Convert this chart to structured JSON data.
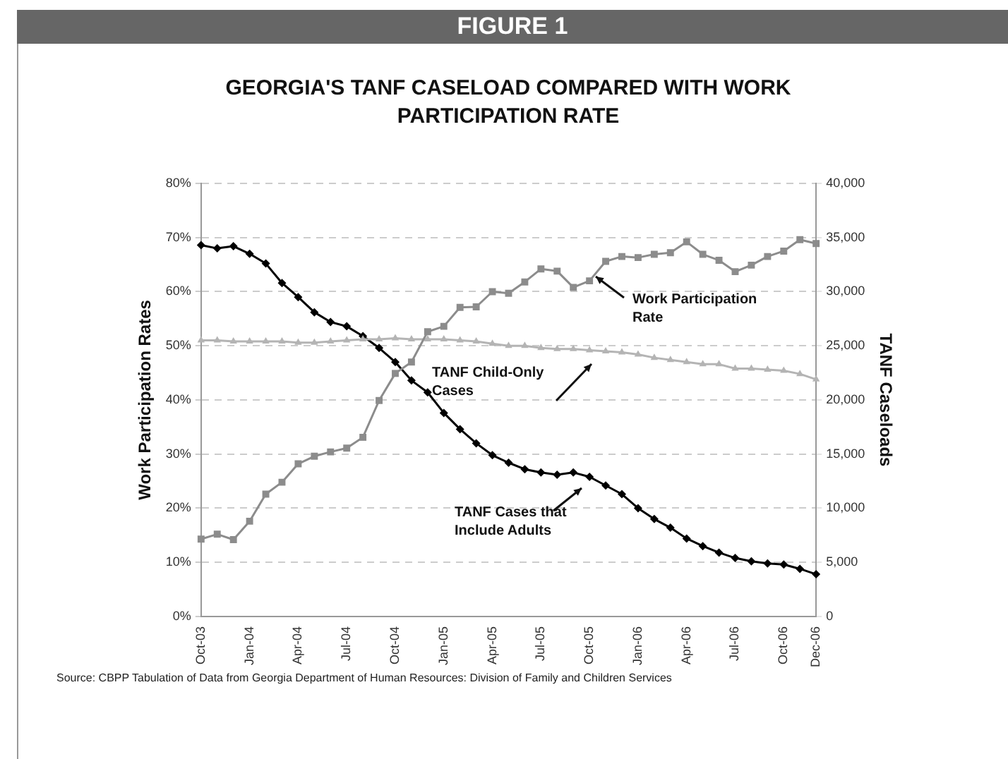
{
  "chart_data": {
    "type": "line",
    "title": "GEORGIA'S TANF CASELOAD COMPARED WITH WORK PARTICIPATION RATE",
    "ylabel": "Work Participation Rates",
    "y2label": "TANF Caseloads",
    "annotations": [
      "FIGURE 1",
      "Source: CBPP Tabulation of Data from Georgia Department of Human Resources: Division of Family and Children Services"
    ],
    "categories": [
      "Oct-03",
      null,
      null,
      "Jan-04",
      null,
      null,
      "Apr-04",
      null,
      null,
      "Jul-04",
      null,
      null,
      "Oct-04",
      null,
      null,
      "Jan-05",
      null,
      null,
      "Apr-05",
      null,
      null,
      "Jul-05",
      null,
      null,
      "Oct-05",
      null,
      null,
      "Jan-06",
      null,
      null,
      "Apr-06",
      null,
      null,
      "Jul-06",
      null,
      null,
      "Oct-06",
      null,
      "Dec-06"
    ],
    "series": [
      {
        "name": "Work Participation Rate",
        "color": "#8c8c8c",
        "marker": "square",
        "values": [
          14.3,
          15.2,
          14.2,
          17.6,
          22.6,
          24.8,
          28.2,
          29.6,
          30.4,
          31.1,
          33.1,
          39.9,
          44.9,
          47.0,
          52.6,
          53.6,
          57.1,
          57.2,
          60.0,
          59.7,
          61.8,
          64.2,
          63.8,
          60.8,
          62.0,
          65.6,
          66.5,
          66.3,
          66.9,
          67.2,
          69.2,
          66.9,
          65.8,
          63.7,
          64.9,
          66.5,
          67.5,
          69.6,
          68.9
        ]
      },
      {
        "name": "TANF Child-Only Cases",
        "color": "#b4b4b4",
        "marker": "triangle",
        "axis": "y2",
        "values": [
          25500,
          25500,
          25400,
          25400,
          25400,
          25400,
          25300,
          25300,
          25400,
          25500,
          25600,
          25600,
          25700,
          25600,
          25600,
          25600,
          25500,
          25400,
          25200,
          25000,
          25000,
          24800,
          24700,
          24700,
          24600,
          24500,
          24400,
          24200,
          23900,
          23700,
          23500,
          23300,
          23300,
          22900,
          22900,
          22800,
          22700,
          22400,
          21900
        ]
      },
      {
        "name": "TANF Cases that Include Adults",
        "color": "#000000",
        "marker": "diamond",
        "axis": "y2",
        "values": [
          34300,
          34000,
          34200,
          33500,
          32600,
          30800,
          29500,
          28100,
          27200,
          26800,
          25900,
          24800,
          23500,
          21800,
          20700,
          18800,
          17300,
          16000,
          14900,
          14200,
          13600,
          13300,
          13100,
          13300,
          12900,
          12100,
          11300,
          10000,
          9000,
          8200,
          7200,
          6500,
          5900,
          5400,
          5100,
          4900,
          4800,
          4400,
          3900
        ]
      }
    ],
    "ylim": [
      0,
      80
    ],
    "yticks": [
      {
        "value": 0,
        "label": "0%"
      },
      {
        "value": 10,
        "label": "10%"
      },
      {
        "value": 20,
        "label": "20%"
      },
      {
        "value": 30,
        "label": "30%"
      },
      {
        "value": 40,
        "label": "40%"
      },
      {
        "value": 50,
        "label": "50%"
      },
      {
        "value": 60,
        "label": "60%"
      },
      {
        "value": 70,
        "label": "70%"
      },
      {
        "value": 80,
        "label": "80%"
      }
    ],
    "y2lim": [
      0,
      40000
    ],
    "y2ticks": [
      0,
      {
        "value": 5000,
        "label": "5,000"
      },
      {
        "value": 10000,
        "label": "10,000"
      },
      {
        "value": 15000,
        "label": "15,000"
      },
      {
        "value": 20000,
        "label": "20,000"
      },
      {
        "value": 25000,
        "label": "25,000"
      },
      {
        "value": 30000,
        "label": "30,000"
      },
      {
        "value": 35000,
        "label": "35,000"
      },
      {
        "value": 40000,
        "label": "40,000"
      }
    ],
    "grid": "y",
    "legend": false,
    "line_style": "solid"
  }
}
